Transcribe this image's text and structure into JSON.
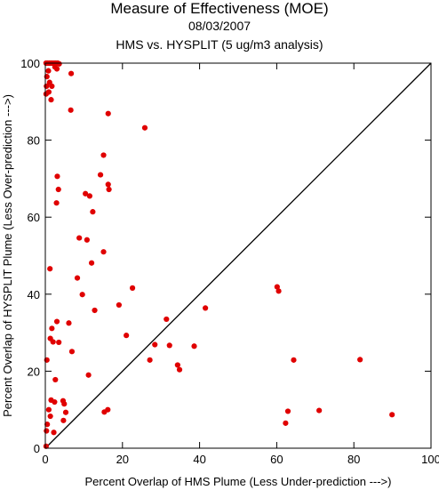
{
  "chart_data": {
    "type": "scatter",
    "title": "Measure of Effectiveness (MOE)",
    "subtitle_date": "08/03/2007",
    "subtitle_analysis": "HMS vs. HYSPLIT  (5 ug/m3 analysis)",
    "xlabel": "Percent Overlap of HMS Plume (Less Under-prediction --->)",
    "ylabel": "Percent Overlap of HYSPLIT Plume (Less Over-prediction --->)",
    "xlim": [
      0,
      100
    ],
    "ylim": [
      0,
      100
    ],
    "xticks": [
      "0",
      "20",
      "40",
      "60",
      "80",
      "100"
    ],
    "yticks": [
      "0",
      "20",
      "40",
      "60",
      "80",
      "100"
    ],
    "point_color": "#e00000",
    "diagonal": true,
    "points": [
      [
        0.2,
        100
      ],
      [
        0.6,
        100
      ],
      [
        1.0,
        100
      ],
      [
        1.4,
        100
      ],
      [
        1.8,
        100
      ],
      [
        2.3,
        100
      ],
      [
        2.7,
        100
      ],
      [
        3.2,
        100
      ],
      [
        3.6,
        99.8
      ],
      [
        0.8,
        98
      ],
      [
        0.4,
        96.5
      ],
      [
        2.5,
        99
      ],
      [
        3.0,
        98.5
      ],
      [
        0.3,
        94
      ],
      [
        0.9,
        92.5
      ],
      [
        1.1,
        95
      ],
      [
        1.7,
        94
      ],
      [
        0.2,
        92
      ],
      [
        1.5,
        90.5
      ],
      [
        6.7,
        97.3
      ],
      [
        6.6,
        87.8
      ],
      [
        16.3,
        86.9
      ],
      [
        25.8,
        83.2
      ],
      [
        15.1,
        76.1
      ],
      [
        3.1,
        70.6
      ],
      [
        14.3,
        71
      ],
      [
        3.4,
        67.2
      ],
      [
        16.3,
        68.5
      ],
      [
        16.5,
        67.2
      ],
      [
        10.4,
        66.1
      ],
      [
        11.5,
        65.5
      ],
      [
        2.9,
        63.7
      ],
      [
        12.3,
        61.4
      ],
      [
        8.8,
        54.6
      ],
      [
        10.8,
        54.1
      ],
      [
        12.0,
        48.1
      ],
      [
        15.1,
        51.0
      ],
      [
        1.2,
        46.6
      ],
      [
        8.3,
        44.2
      ],
      [
        22.6,
        41.6
      ],
      [
        9.6,
        39.9
      ],
      [
        19.1,
        37.2
      ],
      [
        12.8,
        35.8
      ],
      [
        6.1,
        32.5
      ],
      [
        3.0,
        32.9
      ],
      [
        31.4,
        33.5
      ],
      [
        1.7,
        31.1
      ],
      [
        21.0,
        29.3
      ],
      [
        1.3,
        28.5
      ],
      [
        2.0,
        27.6
      ],
      [
        3.5,
        27.5
      ],
      [
        28.4,
        26.9
      ],
      [
        32.2,
        26.7
      ],
      [
        38.6,
        26.5
      ],
      [
        6.9,
        25.1
      ],
      [
        0.4,
        22.9
      ],
      [
        27.1,
        22.9
      ],
      [
        34.3,
        21.6
      ],
      [
        34.8,
        20.4
      ],
      [
        11.2,
        19.0
      ],
      [
        2.6,
        17.8
      ],
      [
        1.5,
        12.5
      ],
      [
        2.4,
        12.0
      ],
      [
        4.6,
        12.3
      ],
      [
        4.9,
        11.5
      ],
      [
        16.2,
        10.0
      ],
      [
        15.3,
        9.4
      ],
      [
        0.9,
        10.0
      ],
      [
        1.3,
        8.3
      ],
      [
        5.3,
        9.3
      ],
      [
        4.7,
        7.2
      ],
      [
        2.2,
        4.1
      ],
      [
        0.5,
        6.2
      ],
      [
        0.3,
        4.5
      ],
      [
        0.2,
        0.5
      ],
      [
        60.1,
        41.9
      ],
      [
        60.5,
        40.8
      ],
      [
        41.5,
        36.4
      ],
      [
        64.4,
        22.9
      ],
      [
        81.6,
        23.0
      ],
      [
        62.9,
        9.6
      ],
      [
        71.0,
        9.8
      ],
      [
        62.3,
        6.5
      ],
      [
        89.9,
        8.7
      ]
    ]
  }
}
